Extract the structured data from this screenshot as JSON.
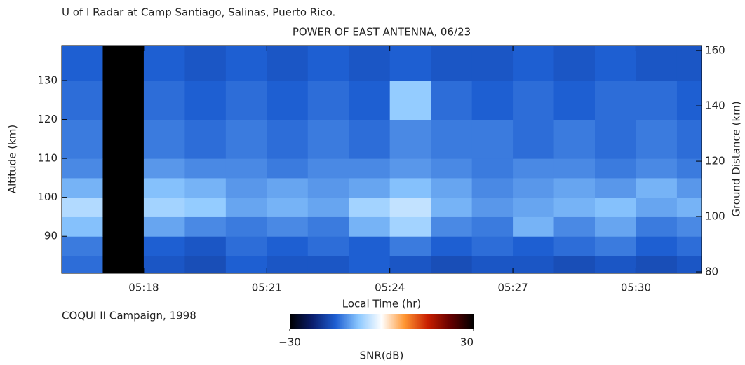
{
  "chart_data": {
    "type": "heatmap",
    "title": "U of I Radar at Camp Santiago, Salinas, Puerto Rico.",
    "subtitle": "POWER OF EAST ANTENNA, 06/23",
    "x_label": "Local Time (hr)",
    "y_label": "Altitude (km)",
    "y2_label": "Ground Distance (km)",
    "annotation": "COQUI II Campaign, 1998",
    "colorbar_label": "SNR(dB)",
    "xlim": [
      316.0,
      331.6
    ],
    "xticks": [
      {
        "value": 318,
        "label": "05:18"
      },
      {
        "value": 321,
        "label": "05:21"
      },
      {
        "value": 324,
        "label": "05:24"
      },
      {
        "value": 327,
        "label": "05:27"
      },
      {
        "value": 330,
        "label": "05:30"
      }
    ],
    "ylim": [
      80.5,
      139
    ],
    "yticks": [
      90,
      100,
      110,
      120,
      130
    ],
    "y2lim": [
      79.5,
      161.8
    ],
    "y2ticks": [
      80,
      100,
      120,
      140,
      160
    ],
    "x_bins": [
      316,
      317,
      318,
      319,
      320,
      321,
      322,
      323,
      324,
      325,
      326,
      327,
      328,
      329,
      330,
      331,
      331.6
    ],
    "y_bins": [
      80.5,
      85,
      90,
      95,
      100,
      105,
      110,
      120,
      130,
      139
    ],
    "z": [
      [
        -14,
        -30,
        -16,
        -17,
        -15,
        -16,
        -16,
        -15,
        -16,
        -17,
        -16,
        -16,
        -17,
        -16,
        -17,
        -16
      ],
      [
        -13,
        -30,
        -15,
        -16,
        -14,
        -15,
        -14,
        -15,
        -13,
        -15,
        -14,
        -15,
        -14,
        -13,
        -15,
        -14
      ],
      [
        -8,
        -30,
        -10,
        -12,
        -13,
        -12,
        -13,
        -9,
        -6,
        -12,
        -13,
        -9,
        -12,
        -10,
        -13,
        -12
      ],
      [
        -5,
        -30,
        -6,
        -7,
        -10,
        -9,
        -10,
        -6,
        -4,
        -9,
        -11,
        -10,
        -9,
        -8,
        -10,
        -9
      ],
      [
        -9,
        -30,
        -8,
        -9,
        -11,
        -10,
        -11,
        -10,
        -8,
        -10,
        -12,
        -11,
        -10,
        -11,
        -9,
        -11
      ],
      [
        -12,
        -30,
        -11,
        -12,
        -12,
        -13,
        -12,
        -12,
        -11,
        -12,
        -13,
        -12,
        -12,
        -13,
        -12,
        -13
      ],
      [
        -13,
        -30,
        -13,
        -14,
        -13,
        -14,
        -13,
        -14,
        -12,
        -13,
        -13,
        -14,
        -13,
        -14,
        -13,
        -14
      ],
      [
        -14,
        -30,
        -14,
        -15,
        -14,
        -15,
        -14,
        -15,
        -7,
        -14,
        -15,
        -14,
        -15,
        -14,
        -14,
        -15
      ],
      [
        -15,
        -30,
        -15,
        -16,
        -15,
        -16,
        -15,
        -16,
        -15,
        -16,
        -16,
        -15,
        -16,
        -15,
        -16,
        -16
      ]
    ],
    "clim": [
      -30,
      30
    ],
    "cticks": [
      {
        "value": -30,
        "label": "−30"
      },
      30
    ],
    "colormap": [
      "#000000",
      "#0a1e6e",
      "#1e5fd2",
      "#8cc8ff",
      "#ffffff",
      "#ff9632",
      "#c81e00",
      "#640000",
      "#000000"
    ]
  }
}
